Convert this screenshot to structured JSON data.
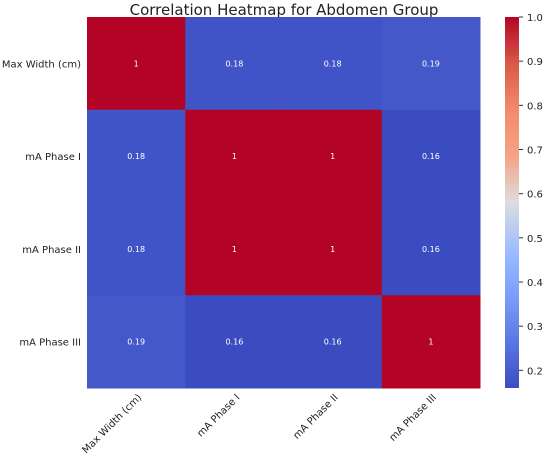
{
  "chart_data": {
    "type": "heatmap",
    "title": "Correlation Heatmap for Abdomen Group",
    "xlabel": "",
    "ylabel": "",
    "row_labels": [
      "Max Width (cm)",
      "mA Phase I",
      "mA Phase II",
      "mA Phase III"
    ],
    "col_labels": [
      "Max Width (cm)",
      "mA Phase I",
      "mA Phase II",
      "mA Phase III"
    ],
    "values": [
      [
        1,
        0.18,
        0.18,
        0.19
      ],
      [
        0.18,
        1,
        1,
        0.16
      ],
      [
        0.18,
        1,
        1,
        0.16
      ],
      [
        0.19,
        0.16,
        0.16,
        1
      ]
    ],
    "cell_text": [
      [
        "1",
        "0.18",
        "0.18",
        "0.19"
      ],
      [
        "0.18",
        "1",
        "1",
        "0.16"
      ],
      [
        "0.18",
        "1",
        "1",
        "0.16"
      ],
      [
        "0.19",
        "0.16",
        "0.16",
        "1"
      ]
    ],
    "colormap": "coolwarm",
    "vmin": 0.16,
    "vmax": 1.0,
    "colorbar_ticks": [
      0.2,
      0.3,
      0.4,
      0.5,
      0.6,
      0.7,
      0.8,
      0.9,
      1.0
    ],
    "colorbar_tick_labels": [
      "0.2",
      "0.3",
      "0.4",
      "0.5",
      "0.6",
      "0.7",
      "0.8",
      "0.9",
      "1.0"
    ],
    "colors": {
      "low": "#3b4cc0",
      "mid": "#dddddd",
      "high": "#b40426",
      "text_on_cell": "#ffffff"
    },
    "grid": false
  }
}
